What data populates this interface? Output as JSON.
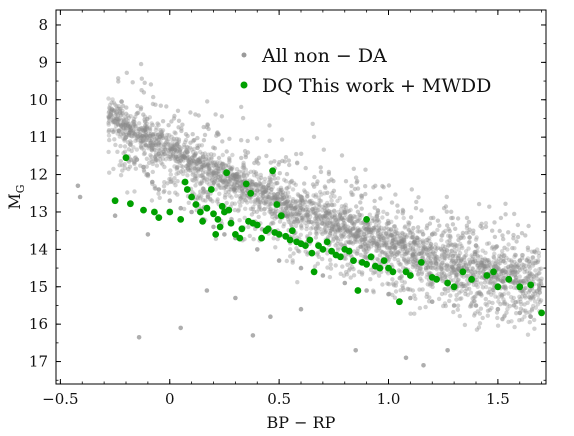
{
  "chart_data": {
    "type": "scatter",
    "title": "",
    "xlabel": "BP − RP",
    "ylabel_main": "M",
    "ylabel_sub": "G",
    "xlim": [
      -0.52,
      1.72
    ],
    "ylim": [
      17.6,
      7.6
    ],
    "y_inverted": true,
    "x_ticks": [
      -0.5,
      0,
      0.5,
      1.0,
      1.5
    ],
    "x_tick_labels": [
      "−0.5",
      "0",
      "0.5",
      "1.0",
      "1.5"
    ],
    "y_ticks": [
      8,
      9,
      10,
      11,
      12,
      13,
      14,
      15,
      16,
      17
    ],
    "y_tick_labels": [
      "8",
      "9",
      "10",
      "11",
      "12",
      "13",
      "14",
      "15",
      "16",
      "17"
    ],
    "grid": false,
    "legend_position": "top-right",
    "colors": {
      "background_points": "#9a9a9a",
      "dq_points": "#00a000",
      "frame": "#000000"
    },
    "series": [
      {
        "name": "All non − DA",
        "marker": "small grey dot",
        "note_points": "dense sequence, approx density sample",
        "points": [
          [
            -0.42,
            12.3
          ],
          [
            -0.41,
            12.6
          ],
          [
            -0.27,
            10.4
          ],
          [
            -0.25,
            10.6
          ],
          [
            -0.22,
            10.05
          ],
          [
            -0.2,
            11.0
          ],
          [
            -0.18,
            11.2
          ],
          [
            -0.15,
            11.6
          ],
          [
            -0.12,
            11.8
          ],
          [
            -0.1,
            12.0
          ],
          [
            -0.08,
            12.2
          ],
          [
            -0.05,
            12.4
          ],
          [
            0.0,
            12.7
          ],
          [
            0.05,
            12.9
          ],
          [
            0.1,
            13.0
          ],
          [
            0.15,
            13.2
          ],
          [
            0.2,
            13.4
          ],
          [
            0.25,
            13.6
          ],
          [
            0.3,
            13.7
          ],
          [
            0.4,
            14.0
          ],
          [
            0.5,
            14.3
          ],
          [
            0.6,
            14.5
          ],
          [
            0.7,
            14.7
          ],
          [
            0.8,
            14.9
          ],
          [
            0.9,
            15.1
          ],
          [
            1.0,
            15.2
          ],
          [
            1.1,
            15.3
          ],
          [
            1.2,
            15.4
          ],
          [
            1.3,
            15.5
          ],
          [
            1.4,
            15.5
          ],
          [
            1.5,
            15.6
          ],
          [
            1.6,
            15.7
          ],
          [
            1.65,
            15.8
          ],
          [
            -0.14,
            16.35
          ],
          [
            0.05,
            16.1
          ],
          [
            0.17,
            15.1
          ],
          [
            0.38,
            16.3
          ],
          [
            0.46,
            15.8
          ],
          [
            0.85,
            16.7
          ],
          [
            1.08,
            16.9
          ],
          [
            1.27,
            16.7
          ],
          [
            1.16,
            17.1
          ],
          [
            -0.25,
            13.1
          ],
          [
            -0.1,
            13.6
          ],
          [
            0.6,
            12.6
          ],
          [
            0.8,
            13.0
          ],
          [
            1.0,
            13.3
          ],
          [
            1.2,
            13.6
          ],
          [
            1.4,
            13.9
          ],
          [
            1.6,
            14.3
          ],
          [
            0.3,
            15.3
          ],
          [
            0.6,
            15.6
          ]
        ]
      },
      {
        "name": "DQ This work + MWDD",
        "marker": "green dot",
        "points": [
          [
            -0.2,
            11.55
          ],
          [
            -0.25,
            12.7
          ],
          [
            -0.18,
            12.78
          ],
          [
            -0.12,
            12.95
          ],
          [
            -0.07,
            13.0
          ],
          [
            -0.05,
            13.15
          ],
          [
            0.0,
            13.0
          ],
          [
            0.05,
            13.2
          ],
          [
            0.07,
            12.2
          ],
          [
            0.08,
            12.4
          ],
          [
            0.1,
            12.6
          ],
          [
            0.12,
            12.8
          ],
          [
            0.14,
            13.0
          ],
          [
            0.15,
            13.25
          ],
          [
            0.17,
            12.9
          ],
          [
            0.19,
            12.4
          ],
          [
            0.2,
            13.05
          ],
          [
            0.21,
            13.6
          ],
          [
            0.22,
            13.2
          ],
          [
            0.23,
            13.4
          ],
          [
            0.24,
            12.85
          ],
          [
            0.25,
            13.0
          ],
          [
            0.26,
            11.95
          ],
          [
            0.27,
            12.95
          ],
          [
            0.28,
            13.3
          ],
          [
            0.3,
            13.6
          ],
          [
            0.32,
            13.7
          ],
          [
            0.33,
            13.45
          ],
          [
            0.35,
            12.25
          ],
          [
            0.36,
            13.25
          ],
          [
            0.37,
            12.5
          ],
          [
            0.38,
            13.3
          ],
          [
            0.4,
            13.35
          ],
          [
            0.42,
            13.7
          ],
          [
            0.44,
            13.5
          ],
          [
            0.45,
            13.45
          ],
          [
            0.47,
            11.9
          ],
          [
            0.48,
            13.55
          ],
          [
            0.49,
            12.8
          ],
          [
            0.5,
            13.6
          ],
          [
            0.51,
            13.1
          ],
          [
            0.53,
            13.65
          ],
          [
            0.55,
            13.75
          ],
          [
            0.56,
            13.5
          ],
          [
            0.58,
            13.8
          ],
          [
            0.6,
            13.85
          ],
          [
            0.62,
            13.9
          ],
          [
            0.64,
            13.75
          ],
          [
            0.65,
            14.1
          ],
          [
            0.66,
            14.6
          ],
          [
            0.68,
            13.9
          ],
          [
            0.7,
            14.0
          ],
          [
            0.72,
            13.8
          ],
          [
            0.74,
            14.05
          ],
          [
            0.76,
            14.15
          ],
          [
            0.78,
            14.2
          ],
          [
            0.8,
            14.0
          ],
          [
            0.82,
            14.05
          ],
          [
            0.84,
            14.3
          ],
          [
            0.86,
            15.1
          ],
          [
            0.88,
            14.35
          ],
          [
            0.9,
            14.4
          ],
          [
            0.9,
            13.2
          ],
          [
            0.92,
            14.2
          ],
          [
            0.94,
            14.45
          ],
          [
            0.96,
            14.5
          ],
          [
            0.98,
            14.3
          ],
          [
            1.0,
            14.5
          ],
          [
            1.02,
            14.6
          ],
          [
            1.05,
            15.4
          ],
          [
            1.08,
            14.6
          ],
          [
            1.1,
            14.7
          ],
          [
            1.15,
            14.35
          ],
          [
            1.2,
            14.75
          ],
          [
            1.22,
            14.8
          ],
          [
            1.27,
            14.9
          ],
          [
            1.3,
            15.0
          ],
          [
            1.34,
            14.6
          ],
          [
            1.38,
            14.8
          ],
          [
            1.45,
            14.7
          ],
          [
            1.48,
            14.6
          ],
          [
            1.5,
            15.0
          ],
          [
            1.55,
            14.8
          ],
          [
            1.6,
            15.0
          ],
          [
            1.65,
            14.95
          ],
          [
            1.7,
            15.7
          ]
        ]
      }
    ]
  }
}
